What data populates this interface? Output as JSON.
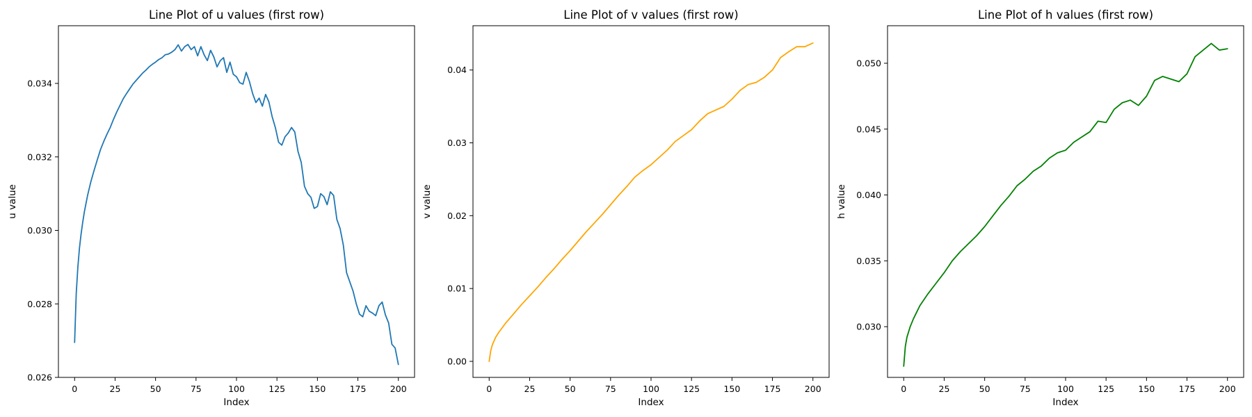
{
  "chart_data": [
    {
      "type": "line",
      "title": "Line Plot of u values (first row)",
      "xlabel": "Index",
      "ylabel": "u value",
      "xlim": [
        -10,
        210
      ],
      "ylim": [
        0.026,
        0.03557
      ],
      "xticks": [
        0,
        25,
        50,
        75,
        100,
        125,
        150,
        175,
        200
      ],
      "xtick_labels": [
        "0",
        "25",
        "50",
        "75",
        "100",
        "125",
        "150",
        "175",
        "200"
      ],
      "yticks": [
        0.026,
        0.028,
        0.03,
        0.032,
        0.034
      ],
      "ytick_labels": [
        "0.026",
        "0.028",
        "0.030",
        "0.032",
        "0.034"
      ],
      "grid": false,
      "color": "#1f77b4",
      "x": [
        0,
        1,
        2,
        3,
        4,
        5,
        6,
        8,
        10,
        12,
        14,
        16,
        18,
        20,
        22,
        24,
        26,
        28,
        30,
        32,
        34,
        36,
        38,
        40,
        42,
        44,
        46,
        48,
        50,
        52,
        54,
        56,
        58,
        60,
        62,
        64,
        66,
        68,
        70,
        72,
        74,
        76,
        78,
        80,
        82,
        84,
        86,
        88,
        90,
        92,
        94,
        96,
        98,
        100,
        102,
        104,
        106,
        108,
        110,
        112,
        114,
        116,
        118,
        120,
        122,
        124,
        126,
        128,
        130,
        132,
        134,
        136,
        138,
        140,
        142,
        144,
        146,
        148,
        150,
        152,
        154,
        156,
        158,
        160,
        162,
        164,
        166,
        168,
        170,
        172,
        174,
        176,
        178,
        180,
        182,
        184,
        186,
        188,
        190,
        192,
        194,
        196,
        198,
        200
      ],
      "y": [
        0.02695,
        0.02828,
        0.029,
        0.02952,
        0.0299,
        0.03022,
        0.0305,
        0.03095,
        0.03132,
        0.03163,
        0.03192,
        0.0322,
        0.03242,
        0.03262,
        0.0328,
        0.03302,
        0.03322,
        0.0334,
        0.03358,
        0.03372,
        0.03385,
        0.03398,
        0.03408,
        0.03418,
        0.03428,
        0.03436,
        0.03445,
        0.03452,
        0.03458,
        0.03465,
        0.0347,
        0.03478,
        0.0348,
        0.03485,
        0.03492,
        0.03505,
        0.03488,
        0.035,
        0.03506,
        0.03492,
        0.035,
        0.03475,
        0.035,
        0.03478,
        0.03462,
        0.0349,
        0.03472,
        0.03445,
        0.03462,
        0.0347,
        0.0343,
        0.03458,
        0.03425,
        0.03418,
        0.03402,
        0.03398,
        0.0343,
        0.03405,
        0.03372,
        0.03348,
        0.0336,
        0.03338,
        0.0337,
        0.0335,
        0.0331,
        0.0328,
        0.0324,
        0.03232,
        0.03255,
        0.03265,
        0.0328,
        0.03268,
        0.03215,
        0.03185,
        0.0312,
        0.031,
        0.0309,
        0.0306,
        0.03065,
        0.031,
        0.03092,
        0.0307,
        0.03105,
        0.03095,
        0.0303,
        0.03005,
        0.0296,
        0.02885,
        0.0286,
        0.02835,
        0.028,
        0.02772,
        0.02765,
        0.02795,
        0.0278,
        0.02775,
        0.02768,
        0.02795,
        0.02805,
        0.0277,
        0.02748,
        0.0269,
        0.0268,
        0.02635
      ]
    },
    {
      "type": "line",
      "title": "Line Plot of v values (first row)",
      "xlabel": "Index",
      "ylabel": "v value",
      "xlim": [
        -10,
        210
      ],
      "ylim": [
        -0.0022,
        0.04608
      ],
      "xticks": [
        0,
        25,
        50,
        75,
        100,
        125,
        150,
        175,
        200
      ],
      "xtick_labels": [
        "0",
        "25",
        "50",
        "75",
        "100",
        "125",
        "150",
        "175",
        "200"
      ],
      "yticks": [
        0.0,
        0.01,
        0.02,
        0.03,
        0.04
      ],
      "ytick_labels": [
        "0.00",
        "0.01",
        "0.02",
        "0.03",
        "0.04"
      ],
      "grid": false,
      "color": "#ffa500",
      "x": [
        0,
        1,
        2,
        4,
        6,
        8,
        10,
        15,
        20,
        25,
        30,
        35,
        40,
        45,
        50,
        55,
        60,
        65,
        70,
        75,
        80,
        85,
        90,
        95,
        100,
        105,
        110,
        115,
        120,
        125,
        130,
        135,
        140,
        145,
        150,
        155,
        160,
        165,
        170,
        175,
        180,
        185,
        190,
        195,
        200
      ],
      "y": [
        0.0,
        0.0015,
        0.0023,
        0.0033,
        0.004,
        0.0046,
        0.0052,
        0.0065,
        0.0078,
        0.009,
        0.0102,
        0.0115,
        0.0127,
        0.014,
        0.0152,
        0.0165,
        0.0178,
        0.019,
        0.0202,
        0.0215,
        0.0228,
        0.024,
        0.0253,
        0.0262,
        0.027,
        0.028,
        0.029,
        0.0302,
        0.031,
        0.0318,
        0.033,
        0.034,
        0.0345,
        0.035,
        0.036,
        0.0372,
        0.038,
        0.0383,
        0.039,
        0.04,
        0.0417,
        0.0425,
        0.0432,
        0.0432,
        0.0437
      ]
    },
    {
      "type": "line",
      "title": "Line Plot of h values (first row)",
      "xlabel": "Index",
      "ylabel": "h value",
      "xlim": [
        -10,
        210
      ],
      "ylim": [
        0.02615,
        0.05285
      ],
      "xticks": [
        0,
        25,
        50,
        75,
        100,
        125,
        150,
        175,
        200
      ],
      "xtick_labels": [
        "0",
        "25",
        "50",
        "75",
        "100",
        "125",
        "150",
        "175",
        "200"
      ],
      "yticks": [
        0.03,
        0.035,
        0.04,
        0.045,
        0.05
      ],
      "ytick_labels": [
        "0.030",
        "0.035",
        "0.040",
        "0.045",
        "0.050"
      ],
      "grid": false,
      "color": "#008000",
      "x": [
        0,
        1,
        2,
        4,
        6,
        8,
        10,
        15,
        20,
        25,
        30,
        35,
        40,
        45,
        50,
        55,
        60,
        65,
        70,
        75,
        80,
        85,
        90,
        95,
        100,
        105,
        110,
        115,
        120,
        125,
        130,
        135,
        140,
        145,
        150,
        155,
        160,
        165,
        170,
        175,
        180,
        185,
        190,
        195,
        200
      ],
      "y": [
        0.027,
        0.0285,
        0.0292,
        0.03,
        0.0306,
        0.0311,
        0.0316,
        0.0325,
        0.0333,
        0.0341,
        0.035,
        0.0357,
        0.0363,
        0.0369,
        0.0376,
        0.0384,
        0.0392,
        0.0399,
        0.0407,
        0.0412,
        0.0418,
        0.0422,
        0.0428,
        0.0432,
        0.0434,
        0.044,
        0.0444,
        0.0448,
        0.0456,
        0.0455,
        0.0465,
        0.047,
        0.0472,
        0.0468,
        0.0475,
        0.0487,
        0.049,
        0.0488,
        0.0486,
        0.0492,
        0.0505,
        0.051,
        0.0515,
        0.051,
        0.0511
      ]
    }
  ]
}
